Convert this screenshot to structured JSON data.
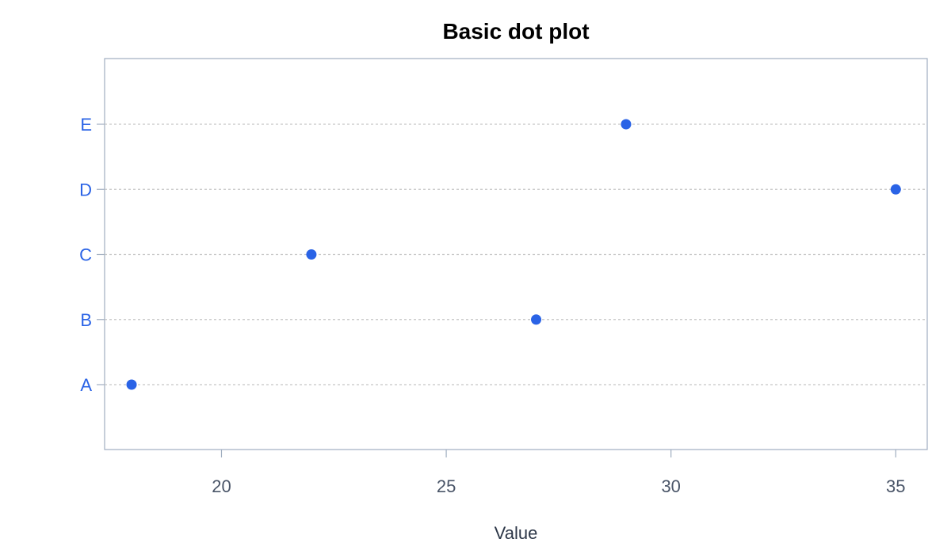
{
  "chart_data": {
    "type": "scatter",
    "title": "Basic dot plot",
    "xlabel": "Value",
    "ylabel": "",
    "categories": [
      "A",
      "B",
      "C",
      "D",
      "E"
    ],
    "values": [
      18,
      27,
      22,
      35,
      29
    ],
    "xlim": [
      17.4,
      35.7
    ],
    "xticks": [
      20,
      25,
      30,
      35
    ],
    "grid": "horizontal dotted lines at each category",
    "legend": "none"
  },
  "colors": {
    "point": "#2a63e6",
    "category_label": "#2a63e6",
    "tick_label": "#4a5568",
    "axis_title": "#2d3748",
    "frame": "#a0aec0",
    "gridline": "#c5c5c5"
  }
}
